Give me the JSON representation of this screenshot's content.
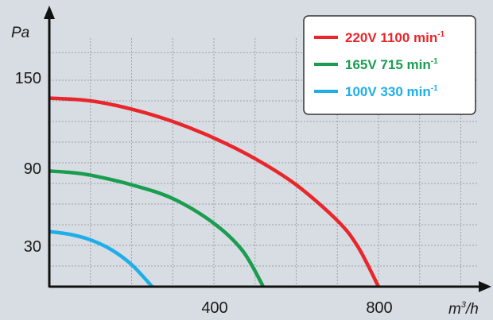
{
  "chart_data": {
    "type": "line",
    "xlabel": "m³/h",
    "xlabel_base": "m",
    "xlabel_sup": "3",
    "xlabel_tail": "/h",
    "ylabel": "Pa",
    "xlim": [
      0,
      1100
    ],
    "ylim": [
      0,
      185
    ],
    "x_ticks": [
      400,
      800
    ],
    "y_ticks": [
      30,
      90,
      150
    ],
    "grid": true,
    "legend_position": "top-right",
    "series": [
      {
        "name": "220V 1100 min-1",
        "label_main": "220V 1100 min",
        "label_sup": "-1",
        "color": "#e8262b",
        "x": [
          0,
          100,
          200,
          300,
          400,
          500,
          600,
          700,
          750,
          800
        ],
        "y": [
          137,
          135,
          129,
          120,
          108,
          93,
          74,
          48,
          29,
          0
        ]
      },
      {
        "name": "165V 715 min-1",
        "label_main": "165V 715 min",
        "label_sup": "-1",
        "color": "#1a9d50",
        "x": [
          0,
          50,
          100,
          200,
          300,
          400,
          470,
          520
        ],
        "y": [
          84,
          83,
          81,
          74,
          64,
          46,
          26,
          0
        ]
      },
      {
        "name": "100V 330 min-1",
        "label_main": "100V 330 min",
        "label_sup": "-1",
        "color": "#1eaee8",
        "x": [
          0,
          50,
          100,
          150,
          200,
          250
        ],
        "y": [
          40,
          38,
          34,
          27,
          16,
          0
        ]
      }
    ]
  }
}
